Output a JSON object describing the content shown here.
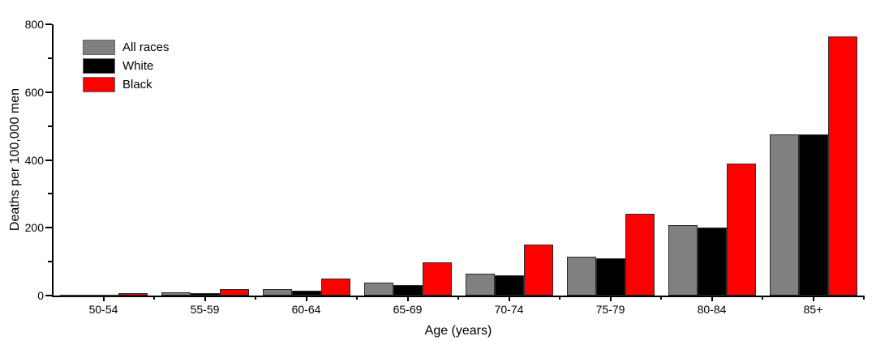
{
  "chart_data": {
    "type": "bar",
    "title": "",
    "xlabel": "Age (years)",
    "ylabel": "Deaths per 100,000 men",
    "categories": [
      "50-54",
      "55-59",
      "60-64",
      "65-69",
      "70-74",
      "75-79",
      "80-84",
      "85+"
    ],
    "series": [
      {
        "name": "All races",
        "color": "#808080",
        "values": [
          2,
          9,
          20,
          38,
          65,
          115,
          208,
          475
        ]
      },
      {
        "name": "White",
        "color": "#000000",
        "values": [
          2,
          6,
          14,
          30,
          60,
          110,
          200,
          475
        ]
      },
      {
        "name": "Black",
        "color": "#ff0000",
        "values": [
          7,
          20,
          50,
          97,
          150,
          240,
          390,
          765
        ]
      }
    ],
    "ylim": [
      0,
      800
    ],
    "yticks_major": [
      0,
      200,
      400,
      600,
      800
    ],
    "yticks_minor": [
      100,
      300,
      500,
      700
    ],
    "grid": false,
    "legend_position": "top-left",
    "axis_color": "#000000",
    "background_color": "#ffffff"
  }
}
